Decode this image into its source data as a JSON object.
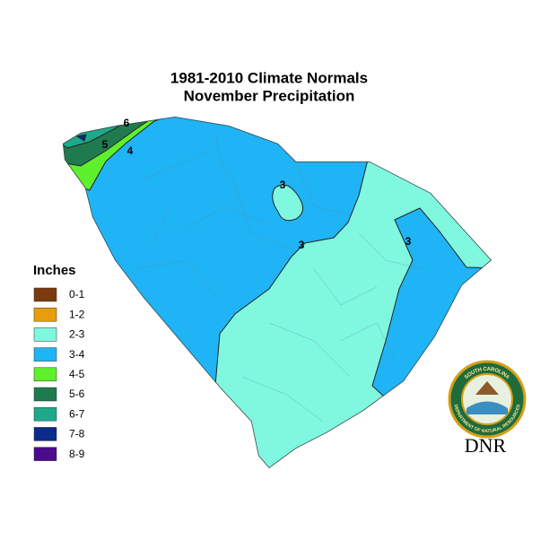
{
  "header": {
    "title_line1": "1981-2010 Climate Normals",
    "title_line2": "November Precipitation"
  },
  "legend": {
    "title": "Inches",
    "items": [
      {
        "label": "0-1",
        "color": "#7a3a0c"
      },
      {
        "label": "1-2",
        "color": "#e89e0c"
      },
      {
        "label": "2-3",
        "color": "#80f7df"
      },
      {
        "label": "3-4",
        "color": "#1fb4f5"
      },
      {
        "label": "4-5",
        "color": "#5ef02c"
      },
      {
        "label": "5-6",
        "color": "#1f7a50"
      },
      {
        "label": "6-7",
        "color": "#1ea98a"
      },
      {
        "label": "7-8",
        "color": "#0b2b8a"
      },
      {
        "label": "8-9",
        "color": "#4b0a8a"
      }
    ]
  },
  "contour_labels": [
    "6",
    "5",
    "4",
    "3",
    "3",
    "3"
  ],
  "logo": {
    "ring_top": "SOUTH CAROLINA",
    "ring_bottom": "DEPARTMENT OF NATURAL RESOURCES",
    "text": "DNR"
  }
}
